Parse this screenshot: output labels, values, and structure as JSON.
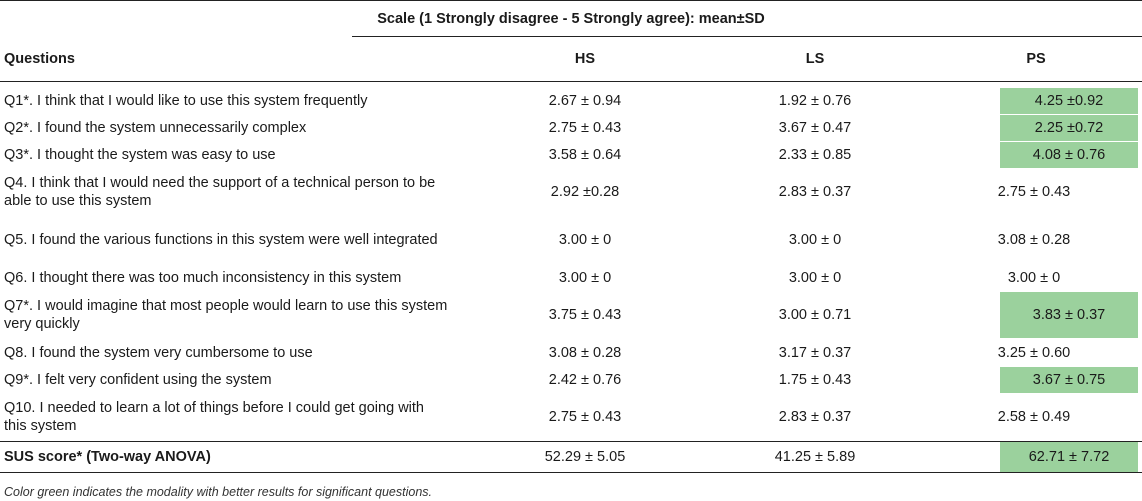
{
  "table": {
    "scale_title": "Scale (1 Strongly disagree - 5 Strongly agree): mean±SD",
    "columns": [
      "Questions",
      "HS",
      "LS",
      "PS"
    ],
    "rows": [
      {
        "question": "Q1*. I think that I would like to use this system frequently",
        "hs": "2.67 ± 0.94",
        "ls": "1.92 ± 0.76",
        "ps": "4.25 ±0.92",
        "ps_highlight": true
      },
      {
        "question": "Q2*. I found the system unnecessarily complex",
        "hs": "2.75 ± 0.43",
        "ls": "3.67 ± 0.47",
        "ps": "2.25 ±0.72",
        "ps_highlight": true
      },
      {
        "question": "Q3*. I thought the system was easy to use",
        "hs": "3.58 ± 0.64",
        "ls": "2.33 ± 0.85",
        "ps": "4.08 ± 0.76",
        "ps_highlight": true
      },
      {
        "question": "Q4. I think that I would need the support of a technical person to be able to use this system",
        "hs": "2.92 ±0.28",
        "ls": "2.83 ± 0.37",
        "ps": "2.75 ± 0.43",
        "ps_highlight": false
      },
      {
        "question": "Q5. I found the various functions in this system were well integrated",
        "hs": "3.00 ± 0",
        "ls": "3.00 ± 0",
        "ps": "3.08 ± 0.28",
        "ps_highlight": false
      },
      {
        "question": "Q6. I thought there was too much inconsistency in this system",
        "hs": "3.00 ± 0",
        "ls": "3.00 ± 0",
        "ps": "3.00 ± 0",
        "ps_highlight": false
      },
      {
        "question": "Q7*. I would imagine that most people would learn to use this system very quickly",
        "hs": "3.75 ± 0.43",
        "ls": "3.00 ± 0.71",
        "ps": "3.83 ± 0.37",
        "ps_highlight": true
      },
      {
        "question": "Q8. I found the system very cumbersome to use",
        "hs": "3.08 ± 0.28",
        "ls": "3.17 ± 0.37",
        "ps": "3.25 ± 0.60",
        "ps_highlight": false
      },
      {
        "question": "Q9*. I felt very confident using the system",
        "hs": "2.42 ± 0.76",
        "ls": "1.75 ± 0.43",
        "ps": "3.67 ± 0.75",
        "ps_highlight": true
      },
      {
        "question": "Q10. I needed to learn a lot of things before I could get going with this system",
        "hs": "2.75 ± 0.43",
        "ls": "2.83 ± 0.37",
        "ps": "2.58 ± 0.49",
        "ps_highlight": false
      }
    ],
    "summary": {
      "question": "SUS score* (Two-way ANOVA)",
      "hs": "52.29 ± 5.05",
      "ls": "41.25 ± 5.89",
      "ps": "62.71 ± 7.72",
      "ps_highlight": true
    },
    "highlight_color": "#9bd19d",
    "caption": "Color green indicates the modality with better results for significant questions."
  }
}
